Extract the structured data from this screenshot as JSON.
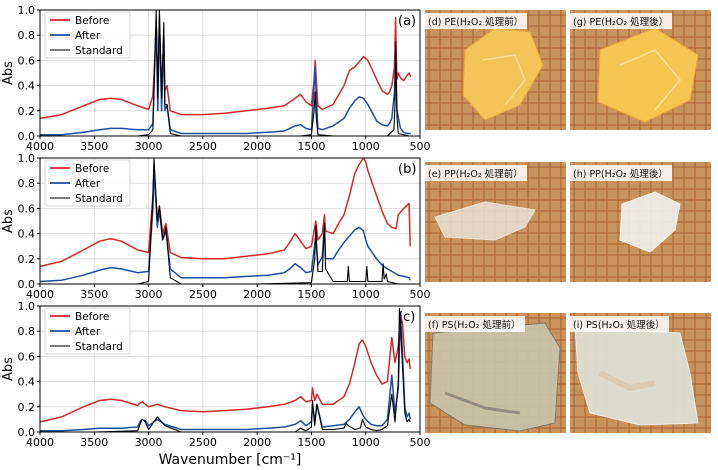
{
  "chart_data": [
    {
      "type": "line",
      "panel_label": "(a)",
      "ylabel": "Abs",
      "ylim": [
        0,
        1.0
      ],
      "yticks": [
        "0.0",
        "0.2",
        "0.4",
        "0.6",
        "0.8",
        "1.0"
      ],
      "xlim": [
        4000,
        500
      ],
      "xticks": [
        "4000",
        "3500",
        "3000",
        "2500",
        "2000",
        "1500",
        "1000",
        "500"
      ],
      "grid": true,
      "legend_position": "top-left",
      "series": [
        {
          "name": "Before",
          "color": "#d62728",
          "x": [
            4000,
            3800,
            3600,
            3450,
            3350,
            3250,
            3100,
            3000,
            2960,
            2930,
            2915,
            2900,
            2880,
            2860,
            2850,
            2830,
            2800,
            2700,
            2500,
            2300,
            2100,
            1900,
            1750,
            1700,
            1650,
            1600,
            1550,
            1500,
            1475,
            1465,
            1455,
            1440,
            1400,
            1300,
            1200,
            1150,
            1100,
            1060,
            1020,
            980,
            900,
            850,
            800,
            780,
            760,
            735,
            725,
            718,
            712,
            700,
            680,
            650,
            620,
            600,
            585
          ],
          "y": [
            0.14,
            0.17,
            0.24,
            0.29,
            0.3,
            0.29,
            0.24,
            0.21,
            0.32,
            0.85,
            0.4,
            0.88,
            0.4,
            0.75,
            0.36,
            0.4,
            0.2,
            0.17,
            0.17,
            0.18,
            0.2,
            0.22,
            0.24,
            0.27,
            0.3,
            0.33,
            0.27,
            0.24,
            0.45,
            0.6,
            0.45,
            0.24,
            0.21,
            0.25,
            0.4,
            0.52,
            0.55,
            0.59,
            0.63,
            0.6,
            0.45,
            0.36,
            0.33,
            0.35,
            0.4,
            0.55,
            0.94,
            0.62,
            0.45,
            0.5,
            0.46,
            0.44,
            0.48,
            0.5,
            0.47
          ]
        },
        {
          "name": "After",
          "color": "#1f4e9b",
          "x": [
            4000,
            3800,
            3600,
            3450,
            3350,
            3250,
            3100,
            3000,
            2960,
            2930,
            2915,
            2900,
            2880,
            2860,
            2850,
            2830,
            2800,
            2700,
            2500,
            2300,
            2100,
            1900,
            1750,
            1700,
            1650,
            1600,
            1550,
            1500,
            1475,
            1465,
            1455,
            1440,
            1400,
            1300,
            1200,
            1150,
            1100,
            1060,
            1020,
            980,
            900,
            850,
            800,
            780,
            760,
            735,
            725,
            718,
            712,
            700,
            680,
            650,
            620,
            600,
            585
          ],
          "y": [
            0.01,
            0.01,
            0.03,
            0.05,
            0.06,
            0.06,
            0.05,
            0.05,
            0.1,
            0.92,
            0.2,
            0.95,
            0.2,
            0.8,
            0.2,
            0.25,
            0.05,
            0.02,
            0.02,
            0.02,
            0.02,
            0.03,
            0.04,
            0.06,
            0.08,
            0.09,
            0.06,
            0.05,
            0.4,
            0.55,
            0.3,
            0.06,
            0.05,
            0.08,
            0.14,
            0.22,
            0.28,
            0.31,
            0.3,
            0.25,
            0.12,
            0.09,
            0.08,
            0.1,
            0.14,
            0.35,
            0.7,
            0.4,
            0.2,
            0.15,
            0.06,
            0.03,
            0.02,
            0.02,
            0.02
          ]
        },
        {
          "name": "Standard",
          "color": "#000000",
          "x": [
            4000,
            3500,
            3100,
            3000,
            2960,
            2930,
            2915,
            2900,
            2880,
            2860,
            2850,
            2830,
            2800,
            2700,
            2300,
            1600,
            1500,
            1475,
            1465,
            1455,
            1440,
            1300,
            800,
            740,
            730,
            725,
            718,
            712,
            700,
            600,
            585
          ],
          "y": [
            0.0,
            0.0,
            0.0,
            0.01,
            0.05,
            1.0,
            0.3,
            1.0,
            0.3,
            0.9,
            0.25,
            0.25,
            0.02,
            0.0,
            0.0,
            0.0,
            0.01,
            0.2,
            0.35,
            0.15,
            0.01,
            0.0,
            0.0,
            0.05,
            0.25,
            0.75,
            0.45,
            0.15,
            0.02,
            0.0,
            0.0
          ]
        }
      ]
    },
    {
      "type": "line",
      "panel_label": "(b)",
      "ylabel": "Abs",
      "ylim": [
        0,
        1.0
      ],
      "yticks": [
        "0.0",
        "0.2",
        "0.4",
        "0.6",
        "0.8",
        "1.0"
      ],
      "xlim": [
        4000,
        500
      ],
      "xticks": [
        "4000",
        "3500",
        "3000",
        "2500",
        "2000",
        "1500",
        "1000",
        "500"
      ],
      "grid": true,
      "legend_position": "top-left",
      "series": [
        {
          "name": "Before",
          "color": "#d62728",
          "x": [
            4000,
            3800,
            3600,
            3450,
            3350,
            3250,
            3100,
            3000,
            2960,
            2950,
            2920,
            2900,
            2870,
            2840,
            2800,
            2700,
            2500,
            2300,
            2100,
            1900,
            1750,
            1700,
            1650,
            1600,
            1550,
            1500,
            1460,
            1440,
            1400,
            1380,
            1370,
            1300,
            1250,
            1200,
            1150,
            1100,
            1060,
            1020,
            1000,
            980,
            900,
            850,
            800,
            760,
            720,
            700,
            650,
            600,
            590
          ],
          "y": [
            0.14,
            0.18,
            0.27,
            0.34,
            0.36,
            0.34,
            0.27,
            0.25,
            0.7,
            0.9,
            0.5,
            0.62,
            0.4,
            0.48,
            0.25,
            0.21,
            0.2,
            0.2,
            0.22,
            0.24,
            0.27,
            0.33,
            0.4,
            0.34,
            0.28,
            0.3,
            0.5,
            0.35,
            0.4,
            0.55,
            0.42,
            0.4,
            0.48,
            0.55,
            0.7,
            0.88,
            0.95,
            1.0,
            0.97,
            0.9,
            0.7,
            0.58,
            0.48,
            0.45,
            0.44,
            0.55,
            0.6,
            0.64,
            0.3
          ]
        },
        {
          "name": "After",
          "color": "#1f4e9b",
          "x": [
            4000,
            3800,
            3600,
            3450,
            3350,
            3250,
            3100,
            3000,
            2960,
            2950,
            2920,
            2900,
            2870,
            2840,
            2800,
            2700,
            2500,
            2300,
            2100,
            1900,
            1750,
            1700,
            1650,
            1600,
            1550,
            1500,
            1460,
            1440,
            1400,
            1380,
            1370,
            1300,
            1250,
            1200,
            1150,
            1100,
            1060,
            1020,
            1000,
            980,
            900,
            850,
            800,
            760,
            720,
            700,
            650,
            600,
            590
          ],
          "y": [
            0.02,
            0.03,
            0.07,
            0.11,
            0.13,
            0.12,
            0.09,
            0.1,
            0.6,
            0.92,
            0.45,
            0.58,
            0.35,
            0.42,
            0.12,
            0.05,
            0.05,
            0.05,
            0.06,
            0.07,
            0.09,
            0.12,
            0.16,
            0.13,
            0.09,
            0.1,
            0.38,
            0.15,
            0.22,
            0.48,
            0.2,
            0.2,
            0.27,
            0.33,
            0.38,
            0.43,
            0.45,
            0.42,
            0.35,
            0.3,
            0.2,
            0.15,
            0.12,
            0.1,
            0.08,
            0.07,
            0.06,
            0.05,
            0.03
          ]
        },
        {
          "name": "Standard",
          "color": "#000000",
          "x": [
            4000,
            3500,
            3100,
            3000,
            2960,
            2950,
            2920,
            2900,
            2870,
            2840,
            2800,
            2700,
            2000,
            1500,
            1470,
            1460,
            1440,
            1400,
            1380,
            1370,
            1300,
            1170,
            1160,
            1150,
            1000,
            990,
            980,
            850,
            840,
            830,
            810,
            800,
            700,
            600,
            590
          ],
          "y": [
            0.0,
            0.0,
            0.0,
            0.02,
            0.7,
            1.0,
            0.5,
            0.62,
            0.35,
            0.45,
            0.05,
            0.0,
            0.0,
            0.01,
            0.2,
            0.46,
            0.1,
            0.1,
            0.48,
            0.12,
            0.02,
            0.02,
            0.14,
            0.02,
            0.02,
            0.14,
            0.02,
            0.02,
            0.16,
            0.04,
            0.08,
            0.02,
            0.0,
            0.0,
            0.0
          ]
        }
      ]
    },
    {
      "type": "line",
      "panel_label": "(c)",
      "ylabel": "Abs",
      "xlabel": "Wavenumber [cm⁻¹]",
      "ylim": [
        0,
        1.0
      ],
      "yticks": [
        "0.0",
        "0.2",
        "0.4",
        "0.6",
        "0.8",
        "1.0"
      ],
      "xlim": [
        4000,
        500
      ],
      "xticks": [
        "4000",
        "3500",
        "3000",
        "2500",
        "2000",
        "1500",
        "1000",
        "500"
      ],
      "grid": true,
      "legend_position": "top-left",
      "series": [
        {
          "name": "Before",
          "color": "#d62728",
          "x": [
            4000,
            3800,
            3600,
            3450,
            3350,
            3250,
            3100,
            3080,
            3060,
            3030,
            3000,
            2920,
            2850,
            2700,
            2500,
            2300,
            2100,
            1900,
            1750,
            1650,
            1600,
            1550,
            1500,
            1490,
            1470,
            1450,
            1400,
            1300,
            1200,
            1150,
            1100,
            1060,
            1030,
            1000,
            950,
            900,
            850,
            800,
            760,
            730,
            700,
            680,
            660,
            640,
            620,
            600,
            590
          ],
          "y": [
            0.08,
            0.12,
            0.2,
            0.25,
            0.26,
            0.25,
            0.21,
            0.23,
            0.24,
            0.22,
            0.2,
            0.22,
            0.2,
            0.17,
            0.16,
            0.17,
            0.18,
            0.2,
            0.22,
            0.25,
            0.28,
            0.24,
            0.25,
            0.35,
            0.25,
            0.3,
            0.22,
            0.22,
            0.28,
            0.38,
            0.55,
            0.7,
            0.73,
            0.68,
            0.55,
            0.45,
            0.38,
            0.4,
            0.75,
            0.55,
            0.68,
            0.95,
            0.85,
            0.6,
            0.55,
            0.58,
            0.5
          ]
        },
        {
          "name": "After",
          "color": "#1f4e9b",
          "x": [
            4000,
            3800,
            3600,
            3450,
            3350,
            3250,
            3100,
            3080,
            3060,
            3030,
            3000,
            2920,
            2850,
            2700,
            2500,
            2300,
            2100,
            1900,
            1750,
            1650,
            1600,
            1550,
            1500,
            1490,
            1470,
            1450,
            1400,
            1300,
            1200,
            1150,
            1100,
            1060,
            1030,
            1000,
            950,
            900,
            850,
            800,
            760,
            730,
            700,
            680,
            660,
            640,
            620,
            600,
            590
          ],
          "y": [
            0.01,
            0.01,
            0.02,
            0.03,
            0.03,
            0.03,
            0.04,
            0.08,
            0.1,
            0.09,
            0.05,
            0.1,
            0.06,
            0.02,
            0.02,
            0.02,
            0.02,
            0.03,
            0.04,
            0.06,
            0.09,
            0.05,
            0.08,
            0.22,
            0.08,
            0.22,
            0.04,
            0.05,
            0.06,
            0.1,
            0.16,
            0.2,
            0.14,
            0.1,
            0.06,
            0.05,
            0.05,
            0.1,
            0.45,
            0.15,
            0.35,
            0.95,
            0.6,
            0.2,
            0.12,
            0.15,
            0.1
          ]
        },
        {
          "name": "Standard",
          "color": "#000000",
          "x": [
            4000,
            3500,
            3100,
            3080,
            3060,
            3030,
            3000,
            2920,
            2850,
            2700,
            2000,
            1650,
            1600,
            1550,
            1500,
            1490,
            1470,
            1450,
            1400,
            1300,
            1200,
            1180,
            1160,
            1100,
            1050,
            1030,
            1000,
            950,
            900,
            850,
            800,
            760,
            730,
            700,
            690,
            680,
            660,
            640,
            620,
            600,
            590
          ],
          "y": [
            0.0,
            0.0,
            0.01,
            0.06,
            0.1,
            0.08,
            0.02,
            0.12,
            0.05,
            0.0,
            0.0,
            0.0,
            0.03,
            0.01,
            0.04,
            0.25,
            0.05,
            0.22,
            0.02,
            0.02,
            0.03,
            0.07,
            0.05,
            0.02,
            0.03,
            0.1,
            0.04,
            0.02,
            0.01,
            0.02,
            0.05,
            0.3,
            0.08,
            0.4,
            0.98,
            0.85,
            0.5,
            0.15,
            0.08,
            0.1,
            0.08
          ]
        }
      ]
    }
  ],
  "photos": [
    {
      "label": "(d) PE(H₂O₂ 処理前）"
    },
    {
      "label": "(g) PE(H₂O₂ 処理後）"
    },
    {
      "label": "(e) PP(H₂O₂ 処理前）"
    },
    {
      "label": "(h) PP(H₂O₂ 処理後）"
    },
    {
      "label": "(f) PS(H₂O₂ 処理前）"
    },
    {
      "label": "(i) PS(H₂O₂ 処理後）"
    }
  ]
}
